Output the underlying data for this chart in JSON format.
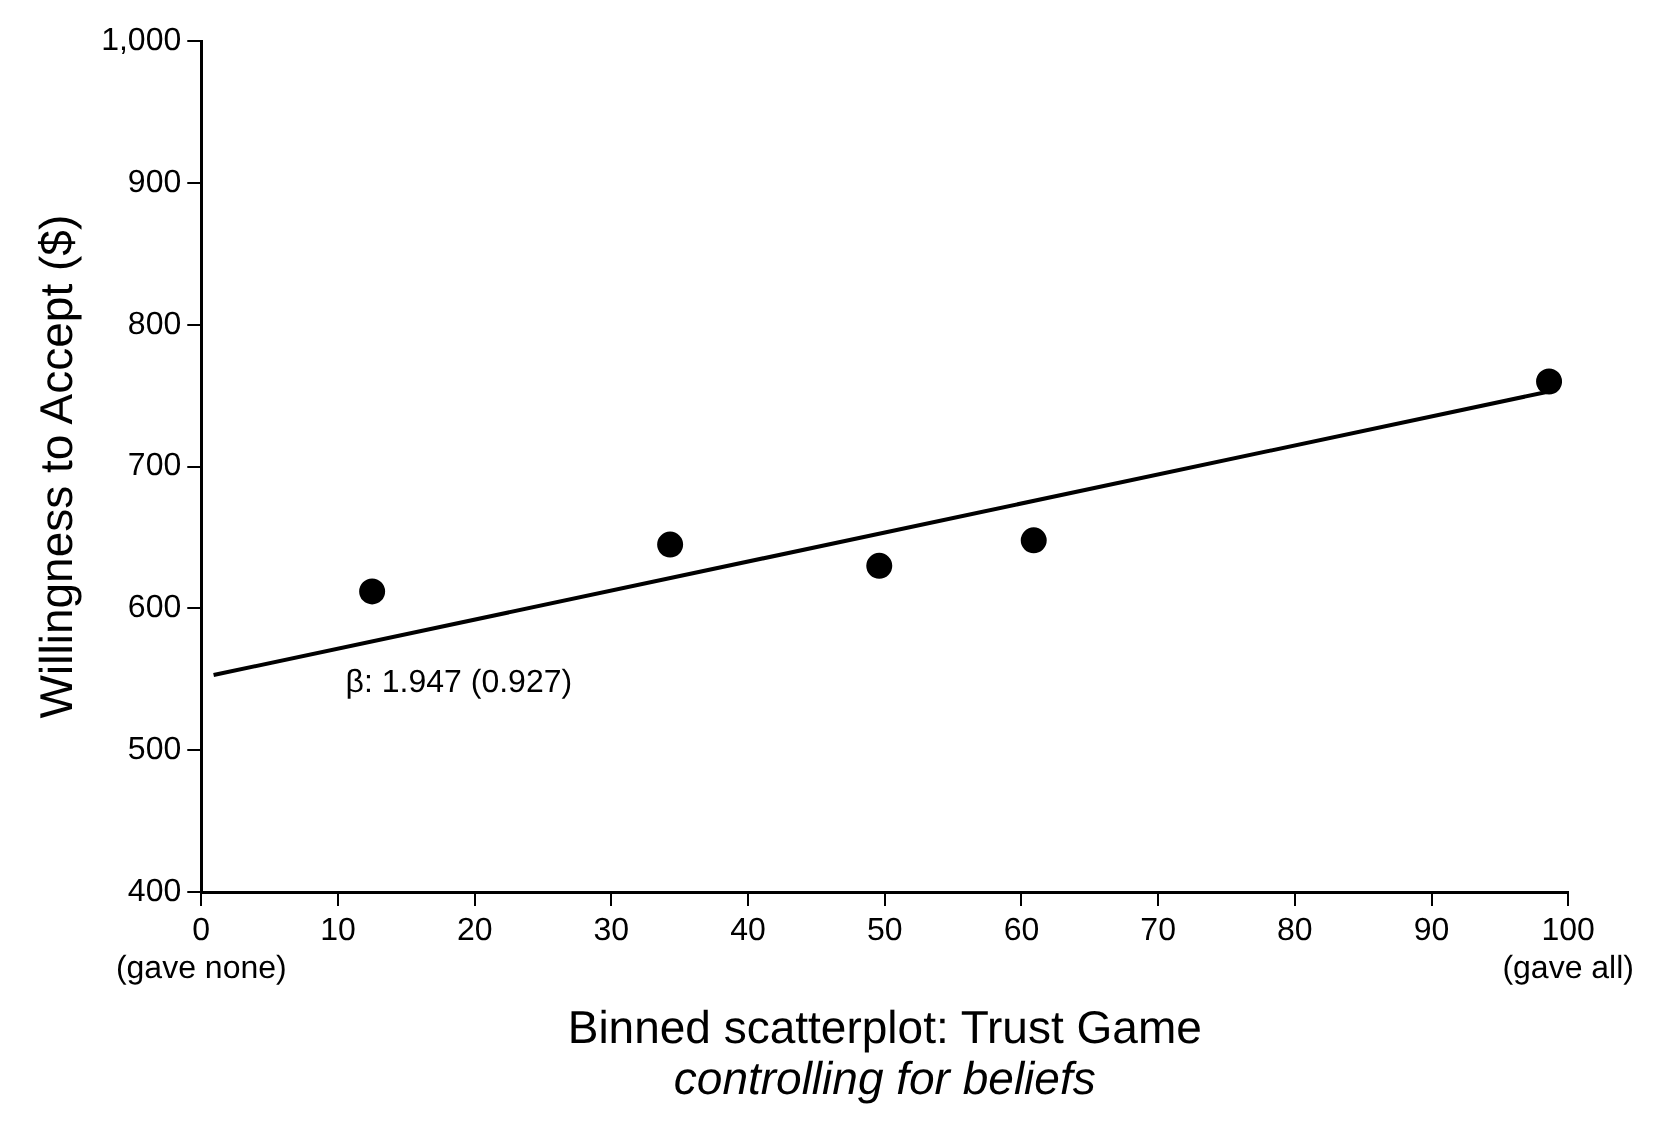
{
  "chart_data": {
    "type": "scatter",
    "xlabel": "Binned scatterplot: Trust Game",
    "ylabel": "Willingness to Accept ($)",
    "xlim": [
      0,
      100
    ],
    "xticks": [
      {
        "value": 0,
        "label": "0\n(gave none)"
      },
      10,
      20,
      30,
      40,
      50,
      60,
      70,
      80,
      90,
      {
        "value": 100,
        "label": "100\n(gave all)"
      }
    ],
    "ylim": [
      400,
      1000
    ],
    "yticks": [
      400,
      500,
      600,
      700,
      800,
      900,
      {
        "value": 1000,
        "label": "1,000"
      }
    ],
    "grid": false,
    "legend": false,
    "marker": "circle",
    "series": [
      {
        "color": "#000000",
        "x": [
          12.5,
          34.3,
          49.6,
          60.9,
          98.6
        ],
        "values": [
          612,
          645,
          630,
          648,
          760
        ]
      },
      {
        "type": "line",
        "color": "#000000",
        "marker": "none",
        "line_style": "solid",
        "x": [
          0.9,
          98.6
        ],
        "values": [
          553,
          753
        ]
      }
    ],
    "annotations": [
      "β: 1.947 (0.927)",
      "controlling for beliefs"
    ]
  }
}
